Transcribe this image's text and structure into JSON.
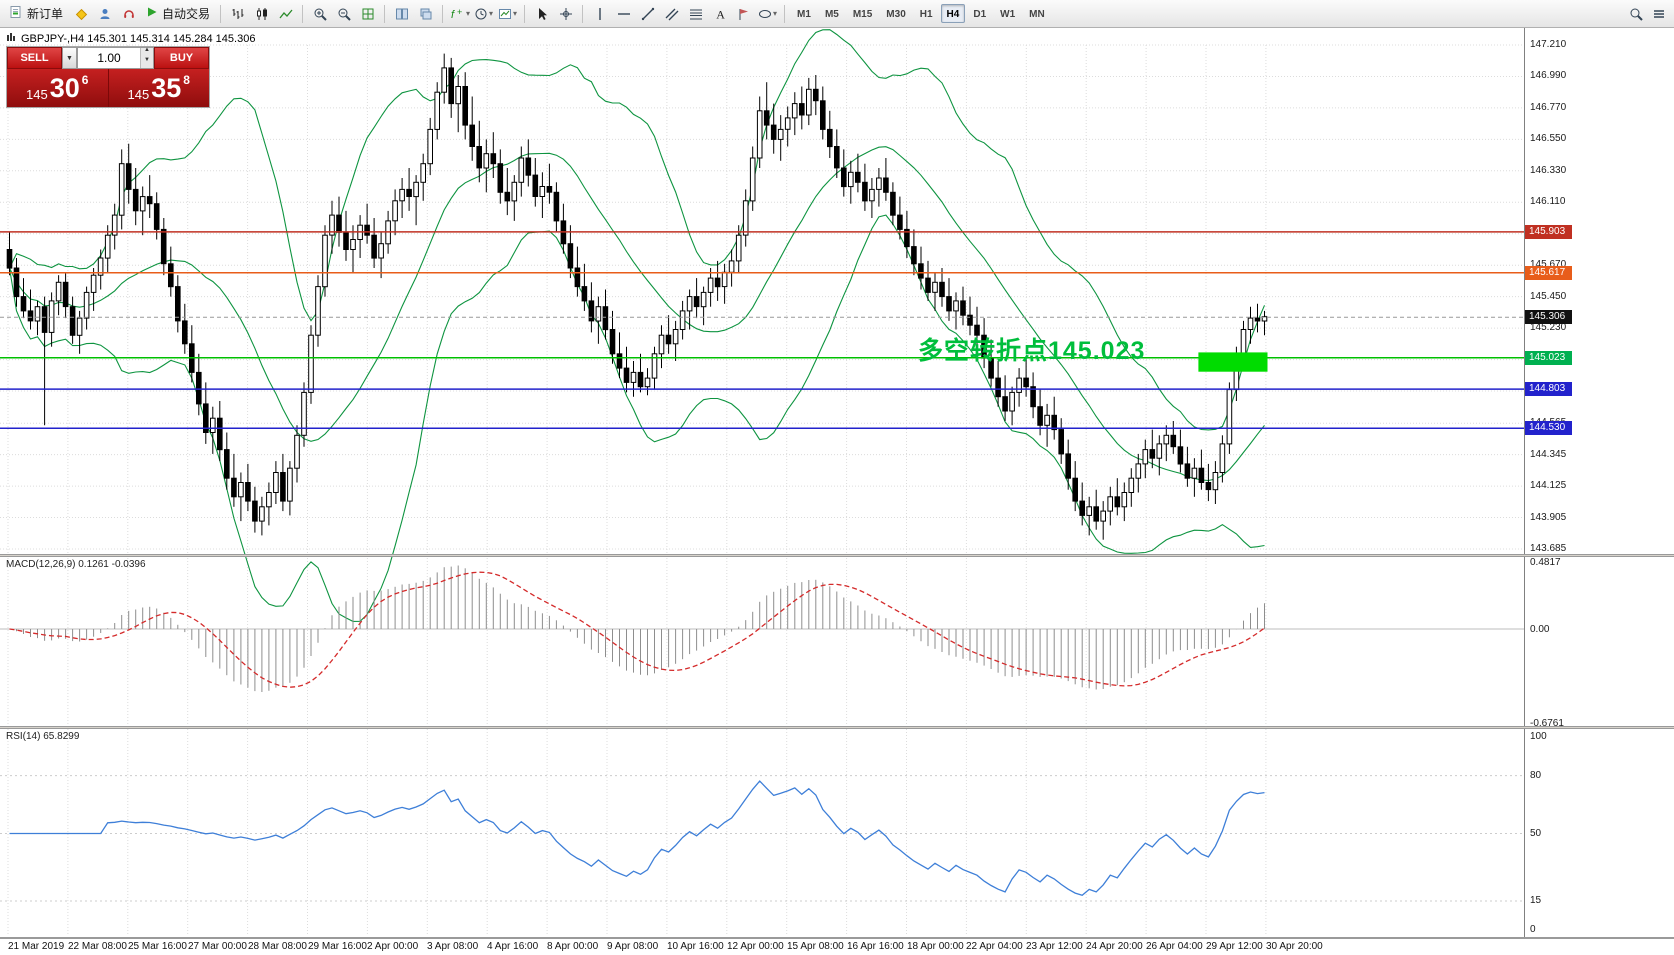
{
  "toolbar": {
    "new_order_label": "新订单",
    "autotrade_label": "自动交易",
    "timeframes": [
      "M1",
      "M5",
      "M15",
      "M30",
      "H1",
      "H4",
      "D1",
      "W1",
      "MN"
    ],
    "active_timeframe": "H4"
  },
  "trade_panel": {
    "sell_label": "SELL",
    "buy_label": "BUY",
    "volume": "1.00",
    "sell_price": {
      "prefix": "145",
      "big": "30",
      "sup": "6"
    },
    "buy_price": {
      "prefix": "145",
      "big": "35",
      "sup": "8"
    }
  },
  "chart": {
    "title": "GBPJPY-,H4  145.301 145.314 145.284 145.306",
    "annotation": "多空转折点145.023"
  },
  "panels": {
    "macd_label": "MACD(12,26,9) 0.1261 -0.0396",
    "rsi_label": "RSI(14) 65.8299"
  },
  "price_axis": {
    "labels": [
      "147.210",
      "146.990",
      "146.770",
      "146.550",
      "146.330",
      "146.110",
      "145.890",
      "145.670",
      "145.450",
      "145.230",
      "145.010",
      "144.790",
      "144.565",
      "144.345",
      "144.125",
      "143.905",
      "143.685"
    ],
    "badges": [
      {
        "value": "145.903",
        "color": "#C03022"
      },
      {
        "value": "145.617",
        "color": "#E85D1A"
      },
      {
        "value": "145.306",
        "color": "#111111"
      },
      {
        "value": "145.023",
        "color": "#00B050"
      },
      {
        "value": "144.803",
        "color": "#2222CC"
      },
      {
        "value": "144.530",
        "color": "#2222CC"
      }
    ]
  },
  "time_axis": {
    "labels": [
      "21 Mar 2019",
      "22 Mar 08:00",
      "25 Mar 16:00",
      "27 Mar 00:00",
      "28 Mar 08:00",
      "29 Mar 16:00",
      "2 Apr 00:00",
      "3 Apr 08:00",
      "4 Apr 16:00",
      "8 Apr 00:00",
      "9 Apr 08:00",
      "10 Apr 16:00",
      "12 Apr 00:00",
      "15 Apr 08:00",
      "16 Apr 16:00",
      "18 Apr 00:00",
      "22 Apr 04:00",
      "23 Apr 12:00",
      "24 Apr 20:00",
      "26 Apr 04:00",
      "29 Apr 12:00",
      "30 Apr 20:00"
    ]
  },
  "chart_data": {
    "type": "candlestick",
    "symbol": "GBPJPY-",
    "timeframe": "H4",
    "bar_ohlc": {
      "open": 145.301,
      "high": 145.314,
      "low": 145.284,
      "close": 145.306
    },
    "current_price": 145.306,
    "ylim": [
      143.685,
      147.21
    ],
    "bollinger": {
      "period": 20,
      "deviation": 2,
      "color": "#0E9440"
    },
    "macd": {
      "fast": 12,
      "slow": 26,
      "signal": 9,
      "value": 0.1261,
      "signal_value": -0.0396,
      "range": [
        -0.6761,
        0.4817
      ],
      "axis": [
        {
          "v": 0.4817,
          "t": "0.4817"
        },
        {
          "v": 0,
          "t": "0.00"
        },
        {
          "v": -0.6761,
          "t": "-0.6761"
        }
      ]
    },
    "rsi": {
      "period": 14,
      "value": 65.8299,
      "levels": [
        80,
        50,
        15
      ],
      "axis": [
        {
          "v": 100,
          "t": "100"
        },
        {
          "v": 80,
          "t": "80"
        },
        {
          "v": 50,
          "t": "50"
        },
        {
          "v": 15,
          "t": "15"
        },
        {
          "v": 0,
          "t": "0"
        }
      ]
    },
    "levels": [
      {
        "price": 145.903,
        "color": "#C03022",
        "style": "solid"
      },
      {
        "price": 145.617,
        "color": "#E85D1A",
        "style": "solid"
      },
      {
        "price": 145.023,
        "color": "#00C000",
        "style": "solid"
      },
      {
        "price": 144.803,
        "color": "#2222CC",
        "style": "solid"
      },
      {
        "price": 144.53,
        "color": "#2222CC",
        "style": "solid"
      },
      {
        "price": 145.306,
        "color": "#999999",
        "style": "dash"
      }
    ],
    "highlight_box": {
      "from_index": 170,
      "to_index": 179,
      "price_top": 145.06,
      "price_bottom": 144.925,
      "color": "#00DC00"
    },
    "ohlc": [
      [
        145.78,
        145.9,
        145.6,
        145.65
      ],
      [
        145.65,
        145.72,
        145.38,
        145.45
      ],
      [
        145.45,
        145.58,
        145.3,
        145.35
      ],
      [
        145.35,
        145.5,
        145.22,
        145.28
      ],
      [
        145.28,
        145.42,
        145.18,
        145.38
      ],
      [
        145.38,
        145.45,
        144.55,
        145.2
      ],
      [
        145.2,
        145.48,
        145.1,
        145.42
      ],
      [
        145.42,
        145.6,
        145.32,
        145.55
      ],
      [
        145.55,
        145.62,
        145.3,
        145.38
      ],
      [
        145.38,
        145.45,
        145.12,
        145.18
      ],
      [
        145.18,
        145.35,
        145.05,
        145.3
      ],
      [
        145.3,
        145.52,
        145.22,
        145.48
      ],
      [
        145.48,
        145.65,
        145.35,
        145.6
      ],
      [
        145.6,
        145.78,
        145.5,
        145.72
      ],
      [
        145.72,
        145.95,
        145.62,
        145.88
      ],
      [
        145.88,
        146.1,
        145.78,
        146.02
      ],
      [
        146.02,
        146.48,
        145.92,
        146.38
      ],
      [
        146.38,
        146.52,
        146.1,
        146.2
      ],
      [
        146.2,
        146.35,
        145.95,
        146.05
      ],
      [
        146.05,
        146.22,
        145.88,
        146.15
      ],
      [
        146.15,
        146.3,
        146.0,
        146.1
      ],
      [
        146.1,
        146.18,
        145.85,
        145.92
      ],
      [
        145.92,
        146.0,
        145.6,
        145.68
      ],
      [
        145.68,
        145.8,
        145.45,
        145.52
      ],
      [
        145.52,
        145.6,
        145.2,
        145.28
      ],
      [
        145.28,
        145.4,
        145.05,
        145.12
      ],
      [
        145.12,
        145.25,
        144.85,
        144.92
      ],
      [
        144.92,
        145.05,
        144.62,
        144.7
      ],
      [
        144.7,
        144.85,
        144.42,
        144.5
      ],
      [
        144.5,
        144.68,
        144.35,
        144.6
      ],
      [
        144.6,
        144.72,
        144.3,
        144.38
      ],
      [
        144.38,
        144.5,
        144.1,
        144.18
      ],
      [
        144.18,
        144.35,
        143.98,
        144.05
      ],
      [
        144.05,
        144.22,
        143.88,
        144.15
      ],
      [
        144.15,
        144.28,
        143.95,
        144.02
      ],
      [
        144.02,
        144.12,
        143.8,
        143.88
      ],
      [
        143.88,
        144.05,
        143.78,
        143.98
      ],
      [
        143.98,
        144.15,
        143.85,
        144.08
      ],
      [
        144.08,
        144.3,
        144.0,
        144.22
      ],
      [
        144.22,
        144.35,
        143.95,
        144.02
      ],
      [
        144.02,
        144.3,
        143.92,
        144.25
      ],
      [
        144.25,
        144.55,
        144.15,
        144.48
      ],
      [
        144.48,
        144.85,
        144.4,
        144.78
      ],
      [
        144.78,
        145.25,
        144.7,
        145.18
      ],
      [
        145.18,
        145.6,
        145.1,
        145.52
      ],
      [
        145.52,
        145.95,
        145.45,
        145.88
      ],
      [
        145.88,
        146.12,
        145.75,
        146.02
      ],
      [
        146.02,
        146.15,
        145.8,
        145.9
      ],
      [
        145.9,
        146.05,
        145.7,
        145.78
      ],
      [
        145.78,
        145.95,
        145.62,
        145.85
      ],
      [
        145.85,
        146.02,
        145.72,
        145.95
      ],
      [
        145.95,
        146.1,
        145.82,
        145.88
      ],
      [
        145.88,
        146.0,
        145.65,
        145.72
      ],
      [
        145.72,
        145.9,
        145.58,
        145.82
      ],
      [
        145.82,
        146.05,
        145.75,
        145.98
      ],
      [
        145.98,
        146.2,
        145.88,
        146.12
      ],
      [
        146.12,
        146.28,
        146.0,
        146.2
      ],
      [
        146.2,
        146.35,
        146.05,
        146.15
      ],
      [
        146.15,
        146.3,
        145.95,
        146.25
      ],
      [
        146.25,
        146.45,
        146.12,
        146.38
      ],
      [
        146.38,
        146.7,
        146.3,
        146.62
      ],
      [
        146.62,
        146.95,
        146.55,
        146.88
      ],
      [
        146.88,
        147.15,
        146.8,
        147.05
      ],
      [
        147.05,
        147.12,
        146.7,
        146.8
      ],
      [
        146.8,
        147.0,
        146.6,
        146.92
      ],
      [
        146.92,
        147.02,
        146.55,
        146.65
      ],
      [
        146.65,
        146.85,
        146.4,
        146.5
      ],
      [
        146.5,
        146.68,
        146.25,
        146.35
      ],
      [
        146.35,
        146.55,
        146.18,
        146.45
      ],
      [
        146.45,
        146.6,
        146.28,
        146.38
      ],
      [
        146.38,
        146.48,
        146.1,
        146.18
      ],
      [
        146.18,
        146.35,
        146.02,
        146.12
      ],
      [
        146.12,
        146.3,
        145.98,
        146.25
      ],
      [
        146.25,
        146.5,
        146.15,
        146.42
      ],
      [
        146.42,
        146.55,
        146.22,
        146.3
      ],
      [
        146.3,
        146.42,
        146.08,
        146.15
      ],
      [
        146.15,
        146.32,
        146.0,
        146.22
      ],
      [
        146.22,
        146.38,
        146.1,
        146.18
      ],
      [
        146.18,
        146.25,
        145.9,
        145.98
      ],
      [
        145.98,
        146.1,
        145.75,
        145.82
      ],
      [
        145.82,
        145.95,
        145.58,
        145.65
      ],
      [
        145.65,
        145.8,
        145.45,
        145.52
      ],
      [
        145.52,
        145.68,
        145.35,
        145.42
      ],
      [
        145.42,
        145.55,
        145.2,
        145.28
      ],
      [
        145.28,
        145.45,
        145.12,
        145.38
      ],
      [
        145.38,
        145.5,
        145.15,
        145.22
      ],
      [
        145.22,
        145.35,
        144.98,
        145.05
      ],
      [
        145.05,
        145.2,
        144.88,
        144.95
      ],
      [
        144.95,
        145.1,
        144.78,
        144.85
      ],
      [
        144.85,
        145.0,
        144.75,
        144.92
      ],
      [
        144.92,
        145.05,
        144.78,
        144.82
      ],
      [
        144.82,
        144.95,
        144.76,
        144.88
      ],
      [
        144.88,
        145.1,
        144.8,
        145.05
      ],
      [
        145.05,
        145.25,
        144.95,
        145.18
      ],
      [
        145.18,
        145.32,
        145.05,
        145.12
      ],
      [
        145.12,
        145.28,
        145.0,
        145.22
      ],
      [
        145.22,
        145.42,
        145.15,
        145.35
      ],
      [
        145.35,
        145.5,
        145.22,
        145.45
      ],
      [
        145.45,
        145.58,
        145.3,
        145.38
      ],
      [
        145.38,
        145.52,
        145.25,
        145.48
      ],
      [
        145.48,
        145.65,
        145.38,
        145.58
      ],
      [
        145.58,
        145.7,
        145.42,
        145.52
      ],
      [
        145.52,
        145.68,
        145.4,
        145.62
      ],
      [
        145.62,
        145.78,
        145.52,
        145.7
      ],
      [
        145.7,
        145.95,
        145.62,
        145.88
      ],
      [
        145.88,
        146.2,
        145.8,
        146.12
      ],
      [
        146.12,
        146.5,
        146.05,
        146.42
      ],
      [
        146.42,
        146.85,
        146.35,
        146.75
      ],
      [
        146.75,
        146.95,
        146.55,
        146.65
      ],
      [
        146.65,
        146.8,
        146.45,
        146.55
      ],
      [
        146.55,
        146.72,
        146.4,
        146.62
      ],
      [
        146.62,
        146.78,
        146.5,
        146.7
      ],
      [
        146.7,
        146.88,
        146.58,
        146.8
      ],
      [
        146.8,
        146.92,
        146.62,
        146.72
      ],
      [
        146.72,
        146.98,
        146.65,
        146.9
      ],
      [
        146.9,
        147.0,
        146.72,
        146.82
      ],
      [
        146.82,
        146.92,
        146.55,
        146.62
      ],
      [
        146.62,
        146.75,
        146.42,
        146.5
      ],
      [
        146.5,
        146.62,
        146.28,
        146.35
      ],
      [
        146.35,
        146.48,
        146.15,
        146.22
      ],
      [
        146.22,
        146.4,
        146.1,
        146.32
      ],
      [
        146.32,
        146.45,
        146.18,
        146.25
      ],
      [
        146.25,
        146.38,
        146.05,
        146.12
      ],
      [
        146.12,
        146.28,
        146.0,
        146.2
      ],
      [
        146.2,
        146.35,
        146.08,
        146.28
      ],
      [
        146.28,
        146.42,
        146.12,
        146.18
      ],
      [
        146.18,
        146.25,
        145.95,
        146.02
      ],
      [
        146.02,
        146.15,
        145.85,
        145.92
      ],
      [
        145.92,
        146.05,
        145.72,
        145.8
      ],
      [
        145.8,
        145.92,
        145.6,
        145.68
      ],
      [
        145.68,
        145.8,
        145.5,
        145.58
      ],
      [
        145.58,
        145.7,
        145.42,
        145.48
      ],
      [
        145.48,
        145.62,
        145.35,
        145.55
      ],
      [
        145.55,
        145.65,
        145.38,
        145.45
      ],
      [
        145.45,
        145.58,
        145.28,
        145.35
      ],
      [
        145.35,
        145.48,
        145.22,
        145.42
      ],
      [
        145.42,
        145.52,
        145.25,
        145.32
      ],
      [
        145.32,
        145.45,
        145.18,
        145.25
      ],
      [
        145.25,
        145.38,
        145.1,
        145.18
      ],
      [
        145.18,
        145.3,
        144.95,
        145.02
      ],
      [
        145.02,
        145.15,
        144.82,
        144.88
      ],
      [
        144.88,
        145.0,
        144.68,
        144.75
      ],
      [
        144.75,
        144.9,
        144.58,
        144.65
      ],
      [
        144.65,
        144.82,
        144.55,
        144.78
      ],
      [
        144.78,
        144.95,
        144.68,
        144.88
      ],
      [
        144.88,
        145.02,
        144.75,
        144.82
      ],
      [
        144.82,
        144.92,
        144.6,
        144.68
      ],
      [
        144.68,
        144.8,
        144.48,
        144.55
      ],
      [
        144.55,
        144.7,
        144.4,
        144.62
      ],
      [
        144.62,
        144.75,
        144.45,
        144.52
      ],
      [
        144.52,
        144.6,
        144.28,
        144.35
      ],
      [
        144.35,
        144.45,
        144.1,
        144.18
      ],
      [
        144.18,
        144.3,
        143.95,
        144.02
      ],
      [
        144.02,
        144.15,
        143.85,
        143.92
      ],
      [
        143.92,
        144.05,
        143.78,
        143.98
      ],
      [
        143.98,
        144.1,
        143.82,
        143.88
      ],
      [
        143.88,
        144.02,
        143.75,
        143.95
      ],
      [
        143.95,
        144.12,
        143.85,
        144.05
      ],
      [
        144.05,
        144.18,
        143.92,
        143.98
      ],
      [
        143.98,
        144.15,
        143.88,
        144.08
      ],
      [
        144.08,
        144.25,
        143.98,
        144.18
      ],
      [
        144.18,
        144.35,
        144.08,
        144.28
      ],
      [
        144.28,
        144.45,
        144.18,
        144.38
      ],
      [
        144.38,
        144.52,
        144.25,
        144.32
      ],
      [
        144.32,
        144.48,
        144.2,
        144.42
      ],
      [
        144.42,
        144.55,
        144.3,
        144.48
      ],
      [
        144.48,
        144.58,
        144.35,
        144.4
      ],
      [
        144.4,
        144.52,
        144.22,
        144.28
      ],
      [
        144.28,
        144.4,
        144.12,
        144.18
      ],
      [
        144.18,
        144.32,
        144.05,
        144.25
      ],
      [
        144.25,
        144.38,
        144.1,
        144.15
      ],
      [
        144.15,
        144.28,
        144.02,
        144.1
      ],
      [
        144.1,
        144.3,
        144.0,
        144.22
      ],
      [
        144.22,
        144.48,
        144.15,
        144.42
      ],
      [
        144.42,
        144.85,
        144.35,
        144.8
      ],
      [
        144.8,
        145.1,
        144.72,
        145.02
      ],
      [
        145.02,
        145.28,
        144.95,
        145.22
      ],
      [
        145.22,
        145.38,
        145.12,
        145.3
      ],
      [
        145.3,
        145.4,
        145.2,
        145.28
      ],
      [
        145.28,
        145.35,
        145.18,
        145.31
      ]
    ]
  }
}
